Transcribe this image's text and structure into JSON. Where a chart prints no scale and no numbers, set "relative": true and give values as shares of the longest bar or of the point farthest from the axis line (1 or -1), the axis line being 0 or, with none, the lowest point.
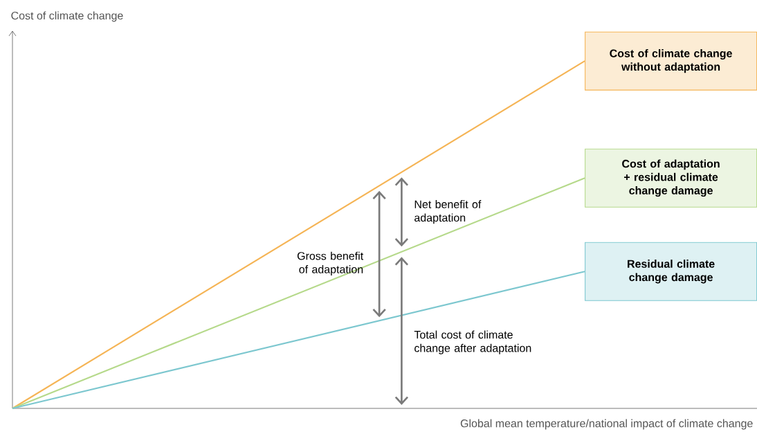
{
  "chart_data": {
    "type": "line",
    "relative": true,
    "xlabel": "Global mean temperature/national impact of climate change",
    "ylabel": "Cost of climate change",
    "categories": [
      null,
      null
    ],
    "series": [
      {
        "name": "Cost of climate change without adaptation",
        "color": "#f5b455",
        "values": [
          0,
          1
        ]
      },
      {
        "name": "Cost of adaptation + residual climate change damage",
        "color": "#b5d98a",
        "values": [
          0,
          0.663
        ]
      },
      {
        "name": "Residual climate change damage",
        "color": "#7cc7cf",
        "values": [
          0,
          0.394
        ]
      }
    ],
    "annotations": [
      "Net benefit of adaptation",
      "Gross benefit of adaptation",
      "Total cost of climate change after adaptation"
    ],
    "legend": false,
    "marker": "none",
    "line_style": "solid"
  }
}
